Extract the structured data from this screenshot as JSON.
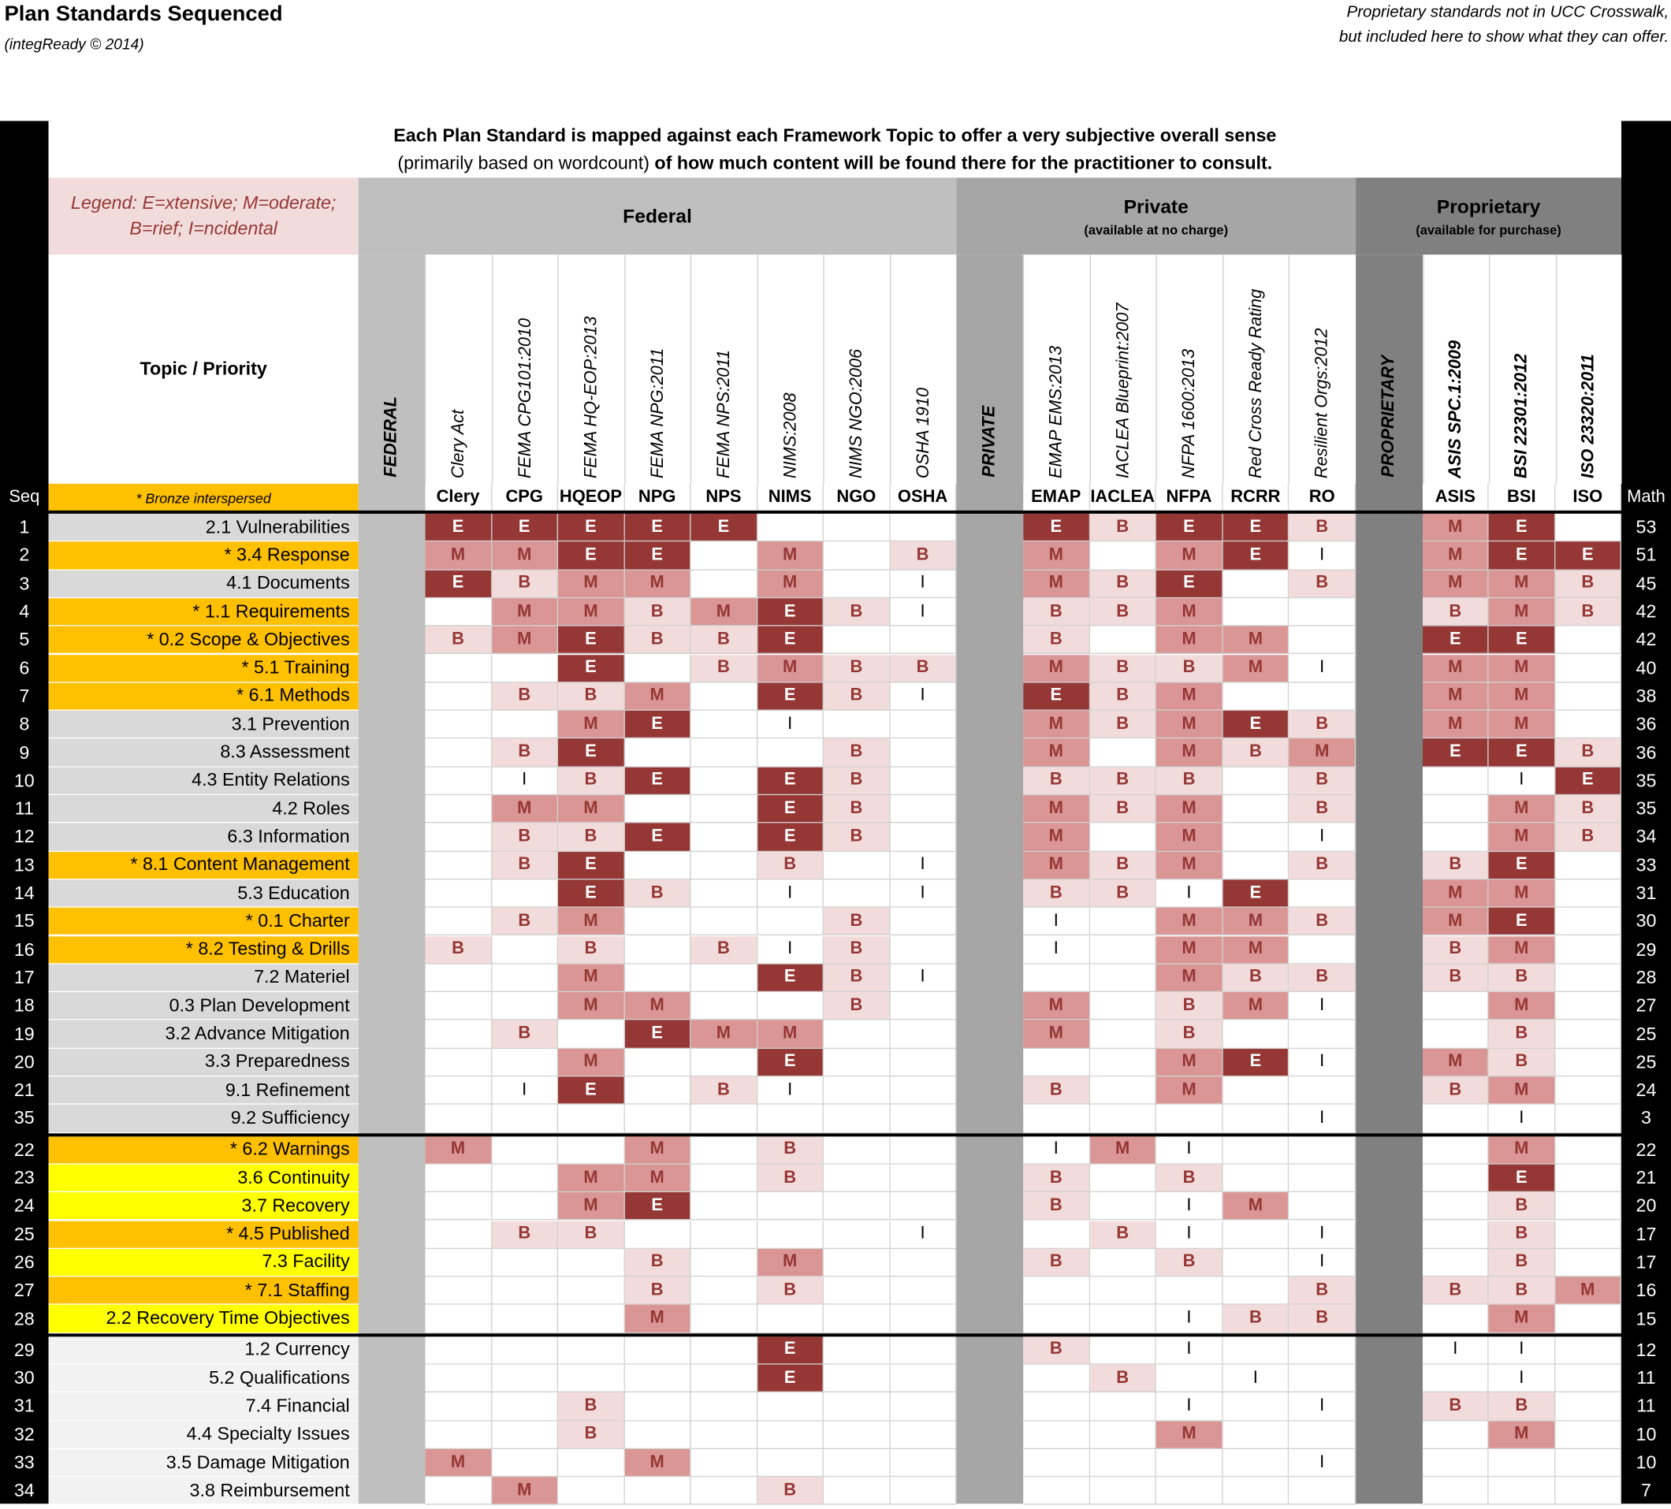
{
  "header": {
    "title": "Plan Standards Sequenced",
    "copyright": "(integReady © 2014)",
    "note": [
      "Proprietary standards not  in  UCC Crosswalk,",
      "but included here to show what they can offer."
    ]
  },
  "table": {
    "banner": {
      "line1": "Each Plan Standard is mapped against each Framework Topic to offer a very subjective overall sense",
      "line2a": "(primarily based on wordcount)",
      "line2b": " of how much content will be found there for the practitioner to consult."
    },
    "legend": {
      "line1": "Legend: E=xtensive; M=oderate;",
      "line2": "B=rief; I=ncidental"
    },
    "topic_header": "Topic / Priority",
    "bronze_note": "* Bronze interspersed",
    "seq_header": "Seq",
    "math_header": "Math",
    "groups": [
      {
        "name": "Federal",
        "separator": "FEDERAL",
        "columns": [
          {
            "name": "Clery Act",
            "code": "Clery"
          },
          {
            "name": "FEMA CPG101:2010",
            "code": "CPG"
          },
          {
            "name": "FEMA HQ-EOP:2013",
            "code": "HQEOP"
          },
          {
            "name": "FEMA NPG:2011",
            "code": "NPG"
          },
          {
            "name": "FEMA NPS:2011",
            "code": "NPS"
          },
          {
            "name": "NIMS:2008",
            "code": "NIMS"
          },
          {
            "name": "NIMS NGO:2006",
            "code": "NGO"
          },
          {
            "name": "OSHA 1910",
            "code": "OSHA"
          }
        ]
      },
      {
        "name": "Private",
        "note": "(available at no charge)",
        "separator": "PRIVATE",
        "columns": [
          {
            "name": "EMAP EMS:2013",
            "code": "EMAP"
          },
          {
            "name": "IACLEA Blueprint:2007",
            "code": "IACLEA"
          },
          {
            "name": "NFPA 1600:2013",
            "code": "NFPA"
          },
          {
            "name": "Red Cross Ready Rating",
            "code": "RCRR"
          },
          {
            "name": "Resilient Orgs:2012",
            "code": "RO"
          }
        ]
      },
      {
        "name": "Proprietary",
        "note": "(available for purchase)",
        "separator": "PROPRIETARY",
        "columns": [
          {
            "name": "ASIS SPC.1:2009",
            "code": "ASIS"
          },
          {
            "name": "BSI 22301:2012",
            "code": "BSI"
          },
          {
            "name": "ISO 23320:2011",
            "code": "ISO"
          }
        ]
      }
    ],
    "sections": [
      [
        {
          "seq": 1,
          "topic": "2.1 Vulnerabilities",
          "cells": [
            "E",
            "E",
            "E",
            "E",
            "E",
            null,
            null,
            null,
            "E",
            "B",
            "E",
            "E",
            "B",
            "M",
            "E",
            null
          ],
          "math": 53
        },
        {
          "seq": 2,
          "topic": "* 3.4 Response",
          "cells": [
            "M",
            "M",
            "E",
            "E",
            null,
            "M",
            null,
            "B",
            "M",
            null,
            "M",
            "E",
            "I",
            "M",
            "E",
            "E"
          ],
          "math": 51
        },
        {
          "seq": 3,
          "topic": "4.1 Documents",
          "cells": [
            "E",
            "B",
            "M",
            "M",
            null,
            "M",
            null,
            "I",
            "M",
            "B",
            "E",
            null,
            "B",
            "M",
            "M",
            "B"
          ],
          "math": 45
        },
        {
          "seq": 4,
          "topic": "* 1.1 Requirements",
          "cells": [
            null,
            "M",
            "M",
            "B",
            "M",
            "E",
            "B",
            "I",
            "B",
            "B",
            "M",
            null,
            null,
            "B",
            "M",
            "B"
          ],
          "math": 42
        },
        {
          "seq": 5,
          "topic": "* 0.2 Scope  & Objectives",
          "cells": [
            "B",
            "M",
            "E",
            "B",
            "B",
            "E",
            null,
            null,
            "B",
            null,
            "M",
            "M",
            null,
            "E",
            "E",
            null
          ],
          "math": 42
        },
        {
          "seq": 6,
          "topic": "* 5.1 Training",
          "cells": [
            null,
            null,
            "E",
            null,
            "B",
            "M",
            "B",
            "B",
            "M",
            "B",
            "B",
            "M",
            "I",
            "M",
            "M",
            null
          ],
          "math": 40
        },
        {
          "seq": 7,
          "topic": "* 6.1 Methods",
          "cells": [
            null,
            "B",
            "B",
            "M",
            null,
            "E",
            "B",
            "I",
            "E",
            "B",
            "M",
            null,
            null,
            "M",
            "M",
            null
          ],
          "math": 38
        },
        {
          "seq": 8,
          "topic": "3.1 Prevention",
          "cells": [
            null,
            null,
            "M",
            "E",
            null,
            "I",
            null,
            null,
            "M",
            "B",
            "M",
            "E",
            "B",
            "M",
            "M",
            null
          ],
          "math": 36
        },
        {
          "seq": 9,
          "topic": "8.3 Assessment",
          "cells": [
            null,
            "B",
            "E",
            null,
            null,
            null,
            "B",
            null,
            "M",
            null,
            "M",
            "B",
            "M",
            "E",
            "E",
            "B"
          ],
          "math": 36
        },
        {
          "seq": 10,
          "topic": "4.3 Entity Relations",
          "cells": [
            null,
            "I",
            "B",
            "E",
            null,
            "E",
            "B",
            null,
            "B",
            "B",
            "B",
            null,
            "B",
            null,
            "I",
            "E"
          ],
          "math": 35
        },
        {
          "seq": 11,
          "topic": "4.2 Roles",
          "cells": [
            null,
            "M",
            "M",
            null,
            null,
            "E",
            "B",
            null,
            "M",
            "B",
            "M",
            null,
            "B",
            null,
            "M",
            "B"
          ],
          "math": 35
        },
        {
          "seq": 12,
          "topic": "6.3 Information",
          "cells": [
            null,
            "B",
            "B",
            "E",
            null,
            "E",
            "B",
            null,
            "M",
            null,
            "M",
            null,
            "I",
            null,
            "M",
            "B"
          ],
          "math": 34
        },
        {
          "seq": 13,
          "topic": "* 8.1 Content Management",
          "cells": [
            null,
            "B",
            "E",
            null,
            null,
            "B",
            null,
            "I",
            "M",
            "B",
            "M",
            null,
            "B",
            "B",
            "E",
            null
          ],
          "math": 33
        },
        {
          "seq": 14,
          "topic": "5.3 Education",
          "cells": [
            null,
            null,
            "E",
            "B",
            null,
            "I",
            null,
            "I",
            "B",
            "B",
            "I",
            "E",
            null,
            "M",
            "M",
            null
          ],
          "math": 31
        },
        {
          "seq": 15,
          "topic": "* 0.1 Charter",
          "cells": [
            null,
            "B",
            "M",
            null,
            null,
            null,
            "B",
            null,
            "I",
            null,
            "M",
            "M",
            "B",
            "M",
            "E",
            null
          ],
          "math": 30
        },
        {
          "seq": 16,
          "topic": "* 8.2 Testing & Drills",
          "cells": [
            "B",
            null,
            "B",
            null,
            "B",
            "I",
            "B",
            null,
            "I",
            null,
            "M",
            "M",
            null,
            "B",
            "M",
            null
          ],
          "math": 29
        },
        {
          "seq": 17,
          "topic": "7.2 Materiel",
          "cells": [
            null,
            null,
            "M",
            null,
            null,
            "E",
            "B",
            "I",
            null,
            null,
            "M",
            "B",
            "B",
            "B",
            "B",
            null
          ],
          "math": 28
        },
        {
          "seq": 18,
          "topic": "0.3 Plan Development",
          "cells": [
            null,
            null,
            "M",
            "M",
            null,
            null,
            "B",
            null,
            "M",
            null,
            "B",
            "M",
            "I",
            null,
            "M",
            null
          ],
          "math": 27
        },
        {
          "seq": 19,
          "topic": "3.2 Advance Mitigation",
          "cells": [
            null,
            "B",
            null,
            "E",
            "M",
            "M",
            null,
            null,
            "M",
            null,
            "B",
            null,
            null,
            null,
            "B",
            null
          ],
          "math": 25
        },
        {
          "seq": 20,
          "topic": "3.3 Preparedness",
          "cells": [
            null,
            null,
            "M",
            null,
            null,
            "E",
            null,
            null,
            null,
            null,
            "M",
            "E",
            "I",
            "M",
            "B",
            null
          ],
          "math": 25
        },
        {
          "seq": 21,
          "topic": "9.1 Refinement",
          "cells": [
            null,
            "I",
            "E",
            null,
            "B",
            "I",
            null,
            null,
            "B",
            null,
            "M",
            null,
            null,
            "B",
            "M",
            null
          ],
          "math": 24
        },
        {
          "seq": 35,
          "topic": "9.2 Sufficiency",
          "cells": [
            null,
            null,
            null,
            null,
            null,
            null,
            null,
            null,
            null,
            null,
            null,
            null,
            "I",
            null,
            "I",
            null
          ],
          "math": 3
        }
      ],
      [
        {
          "seq": 22,
          "topic": "* 6.2 Warnings",
          "cells": [
            "M",
            null,
            null,
            "M",
            null,
            "B",
            null,
            null,
            "I",
            "M",
            "I",
            null,
            null,
            null,
            "M",
            null
          ],
          "math": 22
        },
        {
          "seq": 23,
          "topic": "3.6 Continuity",
          "cells": [
            null,
            null,
            "M",
            "M",
            null,
            "B",
            null,
            null,
            "B",
            null,
            "B",
            null,
            null,
            null,
            "E",
            null
          ],
          "math": 21
        },
        {
          "seq": 24,
          "topic": "3.7 Recovery",
          "cells": [
            null,
            null,
            "M",
            "E",
            null,
            null,
            null,
            null,
            "B",
            null,
            "I",
            "M",
            null,
            null,
            "B",
            null
          ],
          "math": 20
        },
        {
          "seq": 25,
          "topic": "* 4.5 Published",
          "cells": [
            null,
            "B",
            "B",
            null,
            null,
            null,
            null,
            "I",
            null,
            "B",
            "I",
            null,
            "I",
            null,
            "B",
            null
          ],
          "math": 17
        },
        {
          "seq": 26,
          "topic": "7.3 Facility",
          "cells": [
            null,
            null,
            null,
            "B",
            null,
            "M",
            null,
            null,
            "B",
            null,
            "B",
            null,
            "I",
            null,
            "B",
            null
          ],
          "math": 17
        },
        {
          "seq": 27,
          "topic": "* 7.1 Staffing",
          "cells": [
            null,
            null,
            null,
            "B",
            null,
            "B",
            null,
            null,
            null,
            null,
            null,
            null,
            "B",
            "B",
            "B",
            "M"
          ],
          "math": 16
        },
        {
          "seq": 28,
          "topic": "2.2 Recovery Time Objectives",
          "cells": [
            null,
            null,
            null,
            "M",
            null,
            null,
            null,
            null,
            null,
            null,
            "I",
            "B",
            "B",
            null,
            "M",
            null
          ],
          "math": 15
        }
      ],
      [
        {
          "seq": 29,
          "topic": "1.2 Currency",
          "cells": [
            null,
            null,
            null,
            null,
            null,
            "E",
            null,
            null,
            "B",
            null,
            "I",
            null,
            null,
            "I",
            "I",
            null
          ],
          "math": 12
        },
        {
          "seq": 30,
          "topic": "5.2 Qualifications",
          "cells": [
            null,
            null,
            null,
            null,
            null,
            "E",
            null,
            null,
            null,
            "B",
            null,
            "I",
            null,
            null,
            "I",
            null
          ],
          "math": 11
        },
        {
          "seq": 31,
          "topic": "7.4 Financial",
          "cells": [
            null,
            null,
            "B",
            null,
            null,
            null,
            null,
            null,
            null,
            null,
            "I",
            null,
            "I",
            "B",
            "B",
            null
          ],
          "math": 11
        },
        {
          "seq": 32,
          "topic": "4.4 Specialty Issues",
          "cells": [
            null,
            null,
            "B",
            null,
            null,
            null,
            null,
            null,
            null,
            null,
            "M",
            null,
            null,
            null,
            "M",
            null
          ],
          "math": 10
        },
        {
          "seq": 33,
          "topic": "3.5 Damage Mitigation",
          "cells": [
            "M",
            null,
            null,
            "M",
            null,
            null,
            null,
            null,
            null,
            null,
            null,
            null,
            "I",
            null,
            null,
            null
          ],
          "math": 10
        },
        {
          "seq": 34,
          "topic": "3.8 Reimbursement",
          "cells": [
            null,
            "M",
            null,
            null,
            null,
            "B",
            null,
            null,
            null,
            null,
            null,
            null,
            null,
            null,
            null,
            null
          ],
          "math": 7
        }
      ]
    ]
  }
}
